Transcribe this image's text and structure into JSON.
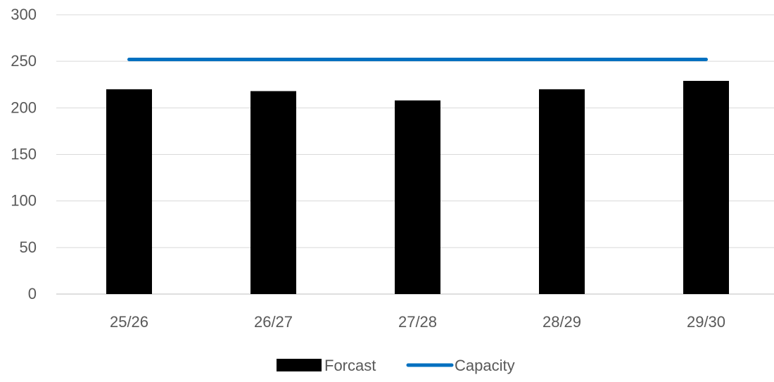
{
  "chart_data": {
    "type": "bar",
    "categories": [
      "25/26",
      "26/27",
      "27/28",
      "28/29",
      "29/30"
    ],
    "series": [
      {
        "name": "Forcast",
        "type": "bar",
        "color": "#000000",
        "values": [
          220,
          218,
          208,
          220,
          229
        ]
      },
      {
        "name": "Capacity",
        "type": "line",
        "color": "#0070C0",
        "values": [
          252,
          252,
          252,
          252,
          252
        ]
      }
    ],
    "ylim": [
      0,
      300
    ],
    "yticks": [
      0,
      50,
      100,
      150,
      200,
      250,
      300
    ],
    "grid": true,
    "legend_position": "bottom"
  }
}
